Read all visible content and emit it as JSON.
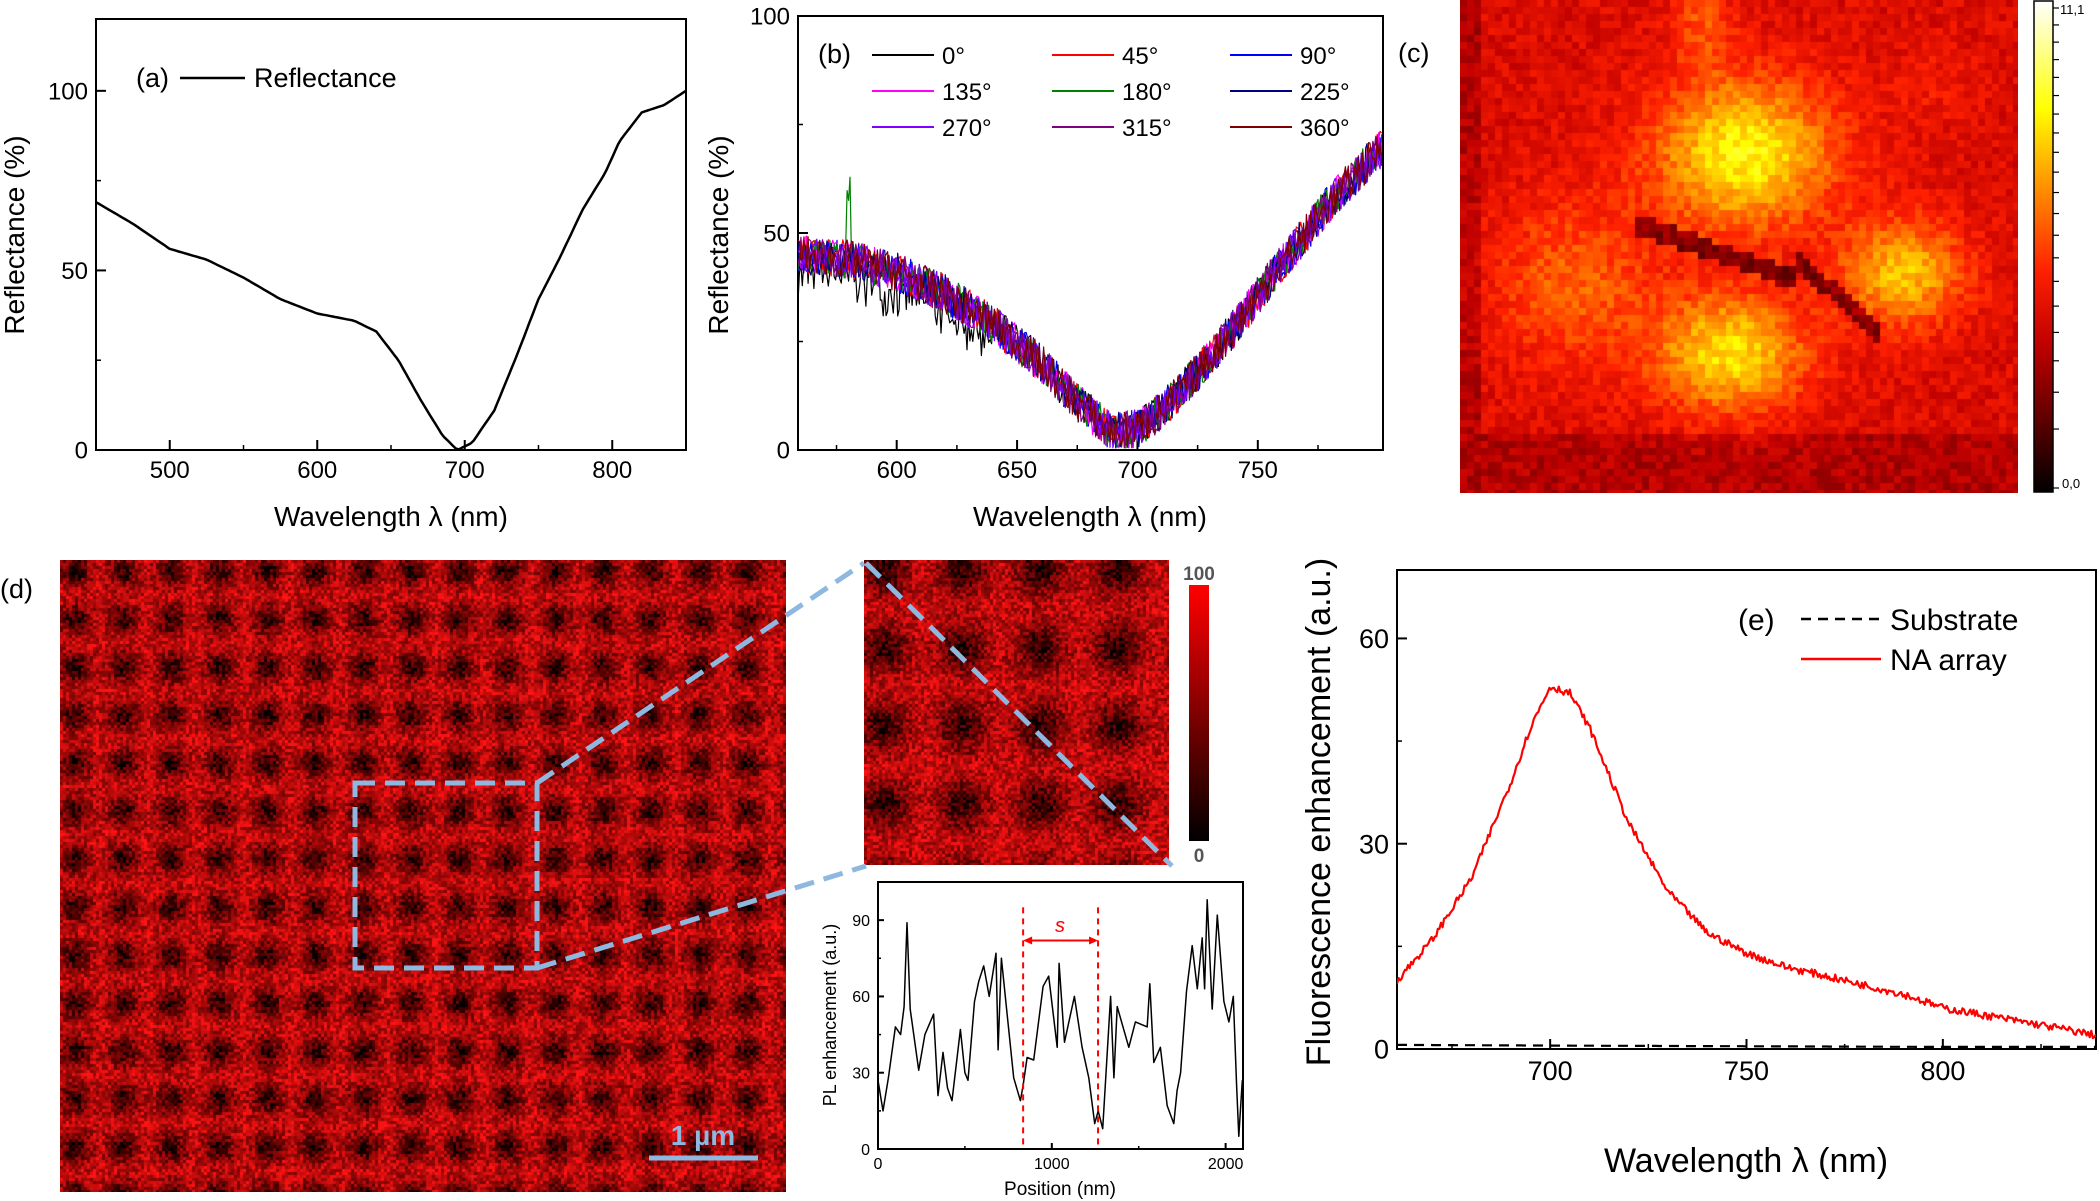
{
  "chart_data": [
    {
      "panel": "(a)",
      "type": "line",
      "xlabel": "Wavelength λ (nm)",
      "ylabel": "Reflectance (%)",
      "xlim": [
        450,
        850
      ],
      "ylim": [
        0,
        120
      ],
      "xticks": [
        500,
        600,
        700,
        800
      ],
      "yticks": [
        0,
        50,
        100
      ],
      "grid": false,
      "legend_position": "top-left",
      "series": [
        {
          "name": "Reflectance",
          "color": "#000000",
          "x": [
            450,
            475,
            500,
            525,
            550,
            575,
            600,
            625,
            640,
            655,
            670,
            685,
            695,
            705,
            720,
            735,
            750,
            765,
            780,
            795,
            805,
            820,
            835,
            850
          ],
          "y": [
            69,
            63,
            56,
            53,
            48,
            42,
            38,
            36,
            33,
            25,
            14,
            4,
            0,
            2,
            11,
            26,
            42,
            54,
            67,
            77,
            86,
            94,
            96,
            100
          ]
        }
      ]
    },
    {
      "panel": "(b)",
      "type": "line",
      "xlabel": "Wavelength λ (nm)",
      "ylabel": "Reflectance (%)",
      "xlim": [
        559,
        802
      ],
      "ylim": [
        0,
        100
      ],
      "xticks": [
        600,
        650,
        700,
        750
      ],
      "yticks": [
        0,
        50,
        100
      ],
      "grid": false,
      "legend_position": "top",
      "approximate_trend": {
        "x": [
          559,
          580,
          600,
          620,
          640,
          660,
          675,
          690,
          700,
          710,
          725,
          740,
          760,
          780,
          802
        ],
        "y": [
          45,
          44,
          41,
          36,
          29,
          20,
          11,
          4,
          5,
          9,
          18,
          28,
          43,
          57,
          70
        ]
      },
      "series": [
        {
          "name": "0°",
          "color": "#000000"
        },
        {
          "name": "45°",
          "color": "#ff0000"
        },
        {
          "name": "90°",
          "color": "#0000ff"
        },
        {
          "name": "135°",
          "color": "#ff00ff"
        },
        {
          "name": "180°",
          "color": "#008000"
        },
        {
          "name": "225°",
          "color": "#000080"
        },
        {
          "name": "270°",
          "color": "#8000ff"
        },
        {
          "name": "315°",
          "color": "#800080"
        },
        {
          "name": "360°",
          "color": "#800000"
        }
      ]
    },
    {
      "panel": "(c)",
      "type": "heatmap",
      "colorbar": {
        "min_label": "0,0",
        "max_label": "11,1",
        "range": [
          0,
          11.1
        ],
        "colors": [
          "#000000",
          "#c00000",
          "#ff2000",
          "#ff9000",
          "#ffff00",
          "#ffffff"
        ]
      }
    },
    {
      "panel": "(d)",
      "type": "heatmap",
      "scale_bar": "1 µm",
      "colorbar": {
        "min_label": "0",
        "max_label": "100",
        "range": [
          0,
          100
        ],
        "colors": [
          "#000000",
          "#ff0000"
        ]
      },
      "accent_color": "#8fb8e0"
    },
    {
      "panel": "(d) profile",
      "type": "line",
      "xlabel": "Position (nm)",
      "ylabel": "PL enhancement (a.u.)",
      "xlim": [
        0,
        2100
      ],
      "ylim": [
        0,
        105
      ],
      "xticks": [
        0,
        1000,
        2000
      ],
      "yticks": [
        0,
        30,
        60,
        90
      ],
      "annotation": {
        "label": "s",
        "x_start": 835,
        "x_end": 1266,
        "color": "#ff0000"
      },
      "series": [
        {
          "color": "#000000",
          "x": [
            0,
            29,
            60,
            100,
            130,
            150,
            167,
            185,
            234,
            270,
            320,
            345,
            374,
            400,
            426,
            474,
            500,
            518,
            555,
            580,
            608,
            640,
            679,
            691,
            710,
            740,
            781,
            819,
            835,
            858,
            896,
            950,
            982,
            1031,
            1042,
            1073,
            1130,
            1174,
            1213,
            1247,
            1267,
            1293,
            1338,
            1357,
            1376,
            1443,
            1481,
            1549,
            1564,
            1587,
            1625,
            1664,
            1702,
            1721,
            1741,
            1775,
            1808,
            1837,
            1865,
            1879,
            1894,
            1923,
            1952,
            1990,
            2019,
            2044,
            2063,
            2076,
            2096
          ],
          "y": [
            27,
            15,
            28,
            48,
            45,
            56,
            89,
            55,
            31,
            45,
            53,
            21,
            38,
            24,
            19,
            47,
            30,
            27,
            58,
            66,
            72,
            60,
            77,
            39,
            75,
            55,
            28,
            19,
            25,
            36,
            35,
            64,
            68,
            40,
            73,
            42,
            60,
            40,
            28,
            10,
            15,
            8,
            60,
            28,
            56,
            40,
            50,
            48,
            65,
            34,
            40,
            17,
            10,
            23,
            30,
            62,
            80,
            63,
            83,
            63,
            98,
            55,
            92,
            58,
            50,
            60,
            25,
            5,
            27
          ]
        }
      ]
    },
    {
      "panel": "(e)",
      "type": "line",
      "xlabel": "Wavelength λ (nm)",
      "ylabel": "Fluorescence enhancement (a.u.)",
      "xlim": [
        661,
        839
      ],
      "ylim": [
        0,
        70
      ],
      "xticks": [
        700,
        750,
        800
      ],
      "yticks": [
        0,
        30,
        60
      ],
      "grid": false,
      "legend_position": "top-right",
      "series": [
        {
          "name": "Substrate",
          "color": "#000000",
          "dash": true,
          "x": [
            661,
            700,
            750,
            800,
            839
          ],
          "y": [
            0.6,
            0.5,
            0.4,
            0.3,
            0.3
          ]
        },
        {
          "name": "NA array",
          "color": "#ff0000",
          "x": [
            661,
            670,
            680,
            690,
            695,
            700,
            705,
            710,
            715,
            720,
            730,
            740,
            750,
            760,
            775,
            790,
            800,
            815,
            830,
            839
          ],
          "y": [
            10,
            16,
            25,
            39,
            47,
            53,
            52,
            47,
            40,
            33,
            23,
            17,
            14,
            12,
            10,
            8,
            6,
            4.5,
            3,
            2
          ]
        }
      ]
    }
  ],
  "labels": {
    "a": "(a)",
    "b": "(b)",
    "c": "(c)",
    "d": "(d)",
    "e": "(e)"
  }
}
